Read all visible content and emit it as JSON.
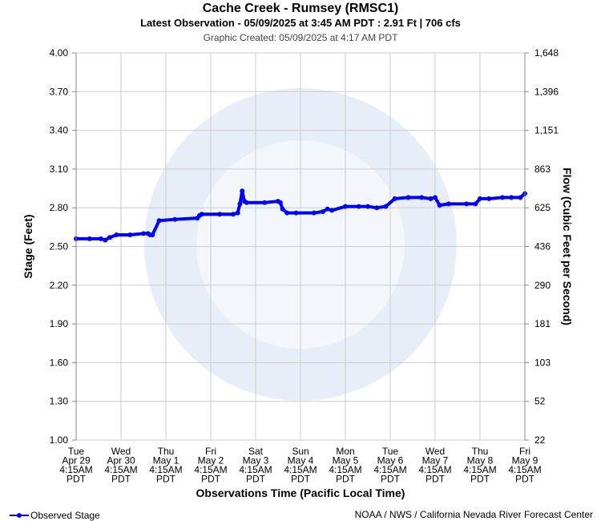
{
  "header": {
    "title": "Cache Creek - Rumsey (RMSC1)",
    "subtitle": "Latest Observation - 05/09/2025 at 3:45 AM PDT : 2.91 Ft | 706 cfs",
    "created": "Graphic Created: 05/09/2025 at 4:17 AM PDT"
  },
  "footer": {
    "legend_label": "Observed Stage",
    "credit": "NOAA / NWS / California Nevada River Forecast Center"
  },
  "colors": {
    "series": "#0000ff",
    "grid": "#cccccc",
    "watermark": "#e8eef7"
  },
  "chart_data": {
    "type": "line",
    "title": "Cache Creek - Rumsey (RMSC1)",
    "xlabel": "Observations Time (Pacific Local Time)",
    "ylabel": "Stage (Feet)",
    "y2label": "Flow (Cubic Feet per Second)",
    "ylim": [
      1.0,
      4.0
    ],
    "xlim": [
      0,
      10
    ],
    "grid": true,
    "legend_position": "bottom-left",
    "y_ticks": [
      "1.00",
      "1.30",
      "1.60",
      "1.90",
      "2.20",
      "2.50",
      "2.80",
      "3.10",
      "3.40",
      "3.70",
      "4.00"
    ],
    "y2_ticks": [
      "22",
      "52",
      "103",
      "181",
      "290",
      "436",
      "625",
      "863",
      "1,151",
      "1,396",
      "1,648"
    ],
    "x_ticks": [
      [
        "Tue",
        "Apr 29",
        "4:15AM",
        "PDT"
      ],
      [
        "Wed",
        "Apr 30",
        "4:15AM",
        "PDT"
      ],
      [
        "Thu",
        "May 1",
        "4:15AM",
        "PDT"
      ],
      [
        "Fri",
        "May 2",
        "4:15AM",
        "PDT"
      ],
      [
        "Sat",
        "May 3",
        "4:15AM",
        "PDT"
      ],
      [
        "Sun",
        "May 4",
        "4:15AM",
        "PDT"
      ],
      [
        "Mon",
        "May 5",
        "4:15AM",
        "PDT"
      ],
      [
        "Tue",
        "May 6",
        "4:15AM",
        "PDT"
      ],
      [
        "Wed",
        "May 7",
        "4:15AM",
        "PDT"
      ],
      [
        "Thu",
        "May 8",
        "4:15AM",
        "PDT"
      ],
      [
        "Fri",
        "May 9",
        "4:15AM",
        "PDT"
      ]
    ],
    "series": [
      {
        "name": "Observed Stage",
        "x": [
          0,
          0.3,
          0.55,
          0.65,
          0.75,
          0.9,
          1.2,
          1.5,
          1.6,
          1.65,
          1.7,
          1.85,
          2.2,
          2.7,
          2.75,
          2.8,
          3.2,
          3.5,
          3.6,
          3.65,
          3.7,
          3.75,
          3.8,
          4.2,
          4.5,
          4.55,
          4.6,
          4.7,
          4.9,
          5.3,
          5.5,
          5.6,
          5.7,
          6.0,
          6.3,
          6.5,
          6.7,
          6.9,
          7.1,
          7.4,
          7.7,
          7.9,
          8.0,
          8.1,
          8.3,
          8.7,
          8.9,
          9.0,
          9.2,
          9.5,
          9.7,
          9.9,
          10.0
        ],
        "y": [
          2.56,
          2.56,
          2.56,
          2.55,
          2.57,
          2.59,
          2.59,
          2.6,
          2.6,
          2.59,
          2.59,
          2.7,
          2.71,
          2.72,
          2.74,
          2.75,
          2.75,
          2.75,
          2.76,
          2.83,
          2.93,
          2.85,
          2.84,
          2.84,
          2.85,
          2.84,
          2.79,
          2.76,
          2.76,
          2.76,
          2.77,
          2.79,
          2.78,
          2.81,
          2.81,
          2.81,
          2.8,
          2.81,
          2.87,
          2.88,
          2.88,
          2.87,
          2.88,
          2.82,
          2.83,
          2.83,
          2.83,
          2.87,
          2.87,
          2.88,
          2.88,
          2.88,
          2.91
        ]
      }
    ]
  }
}
